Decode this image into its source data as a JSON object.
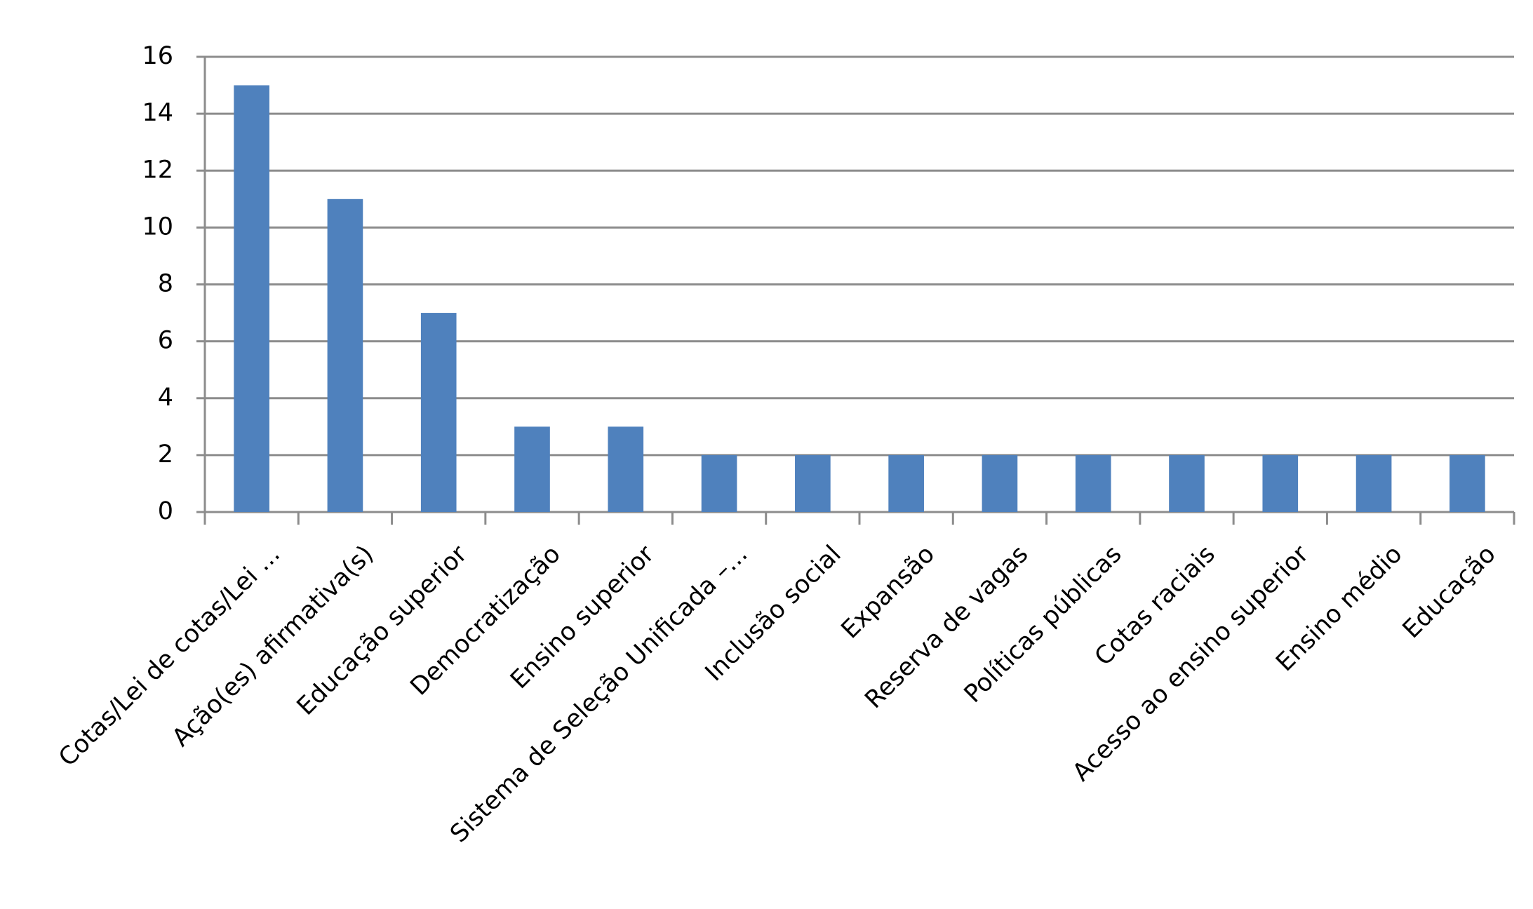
{
  "chart_data": {
    "type": "bar",
    "categories": [
      "Cotas/Lei de cotas/Lei ...",
      "Ação(es) afirmativa(s)",
      "Educação superior",
      "Democratização",
      "Ensino superior",
      "Sistema de Seleção Unificada –...",
      "Inclusão social",
      "Expansão",
      "Reserva de vagas",
      "Políticas públicas",
      "Cotas raciais",
      "Acesso ao ensino superior",
      "Ensino médio",
      "Educação"
    ],
    "values": [
      15,
      11,
      7,
      3,
      3,
      2,
      2,
      2,
      2,
      2,
      2,
      2,
      2,
      2
    ],
    "color": "#4f81bd",
    "ylim": [
      0,
      16
    ],
    "yticks": [
      0,
      2,
      4,
      6,
      8,
      10,
      12,
      14,
      16
    ],
    "grid": true
  }
}
